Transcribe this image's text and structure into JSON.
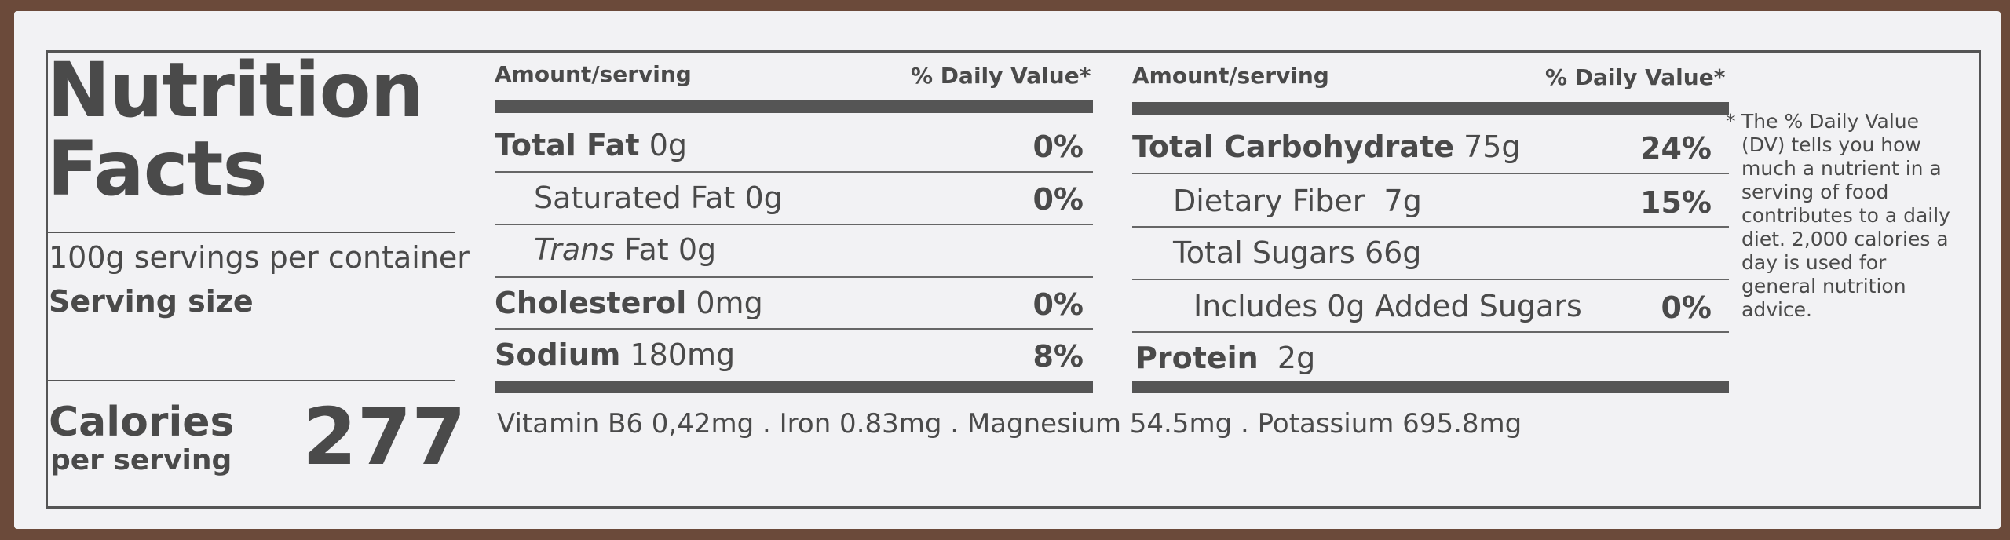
{
  "title_line1": "Nutrition",
  "title_line2": "Facts",
  "servings_per_container": "100g servings per container",
  "serving_size_label": "Serving size",
  "calories": {
    "label": "Calories",
    "sub": "per serving",
    "value": "277"
  },
  "left_table": {
    "header_amount": "Amount/serving",
    "header_dv": "% Daily Value*",
    "rows": [
      {
        "name": "Total Fat",
        "amount": "0g",
        "dv": "0%"
      },
      {
        "name": "Saturated Fat",
        "amount": "0g",
        "dv": "0%"
      },
      {
        "name": "Trans",
        "name_rest": "Fat",
        "amount": "0g",
        "dv": ""
      },
      {
        "name": "Cholesterol",
        "amount": "0mg",
        "dv": "0%"
      },
      {
        "name": "Sodium",
        "amount": "180mg",
        "dv": "8%"
      }
    ]
  },
  "right_table": {
    "header_amount": "Amount/serving",
    "header_dv": "% Daily Value*",
    "rows": [
      {
        "name": "Total Carbohydrate",
        "amount": "75g",
        "dv": "24%"
      },
      {
        "name": "Dietary Fiber",
        "amount": "7g",
        "dv": "15%"
      },
      {
        "name": "Total Sugars",
        "amount": "66g",
        "dv": ""
      },
      {
        "name": "Includes 0g Added Sugars",
        "amount": "",
        "dv": "0%"
      },
      {
        "name": "Protein",
        "amount": "2g",
        "dv": ""
      }
    ]
  },
  "vitamins": "Vitamin B6 0,42mg  .  Iron 0.83mg  .  Magnesium 54.5mg  .  Potassium 695.8mg",
  "footnote_star": "*",
  "footnote": "The % Daily Value (DV) tells you how much a nutrient in a serving of food contributes to a daily diet. 2,000 calories a day is used for general nutrition advice."
}
